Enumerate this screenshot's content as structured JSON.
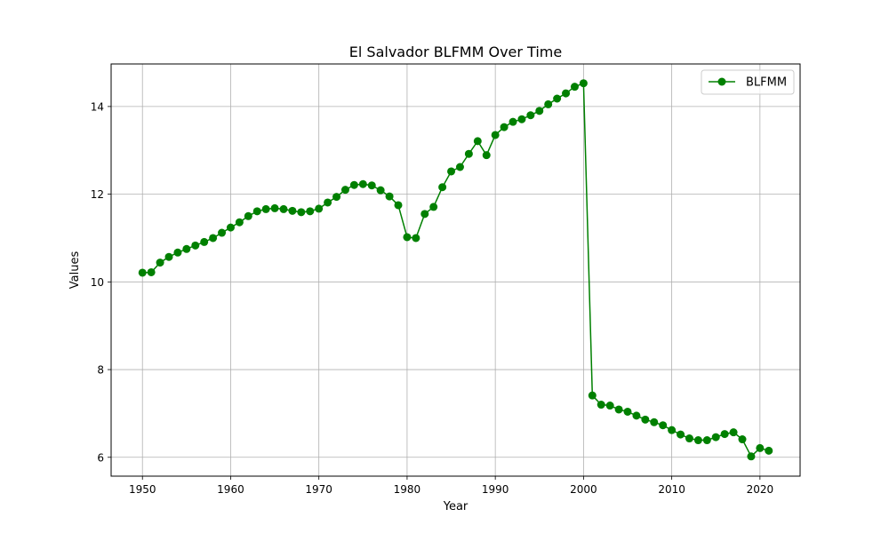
{
  "chart_data": {
    "type": "line",
    "title": "El Salvador BLFMM Over Time",
    "xlabel": "Year",
    "ylabel": "Values",
    "xlim": [
      1946.45,
      2024.55
    ],
    "ylim": [
      5.57,
      14.97
    ],
    "xticks": [
      1950,
      1960,
      1970,
      1980,
      1990,
      2000,
      2010,
      2020
    ],
    "yticks": [
      6,
      8,
      10,
      12,
      14
    ],
    "grid": true,
    "legend_position": "top-right",
    "series": [
      {
        "name": "BLFMM",
        "color": "#008000",
        "marker": "circle",
        "x": [
          1950,
          1951,
          1952,
          1953,
          1954,
          1955,
          1956,
          1957,
          1958,
          1959,
          1960,
          1961,
          1962,
          1963,
          1964,
          1965,
          1966,
          1967,
          1968,
          1969,
          1970,
          1971,
          1972,
          1973,
          1974,
          1975,
          1976,
          1977,
          1978,
          1979,
          1980,
          1981,
          1982,
          1983,
          1984,
          1985,
          1986,
          1987,
          1988,
          1989,
          1990,
          1991,
          1992,
          1993,
          1994,
          1995,
          1996,
          1997,
          1998,
          1999,
          2000,
          2001,
          2002,
          2003,
          2004,
          2005,
          2006,
          2007,
          2008,
          2009,
          2010,
          2011,
          2012,
          2013,
          2014,
          2015,
          2016,
          2017,
          2018,
          2019,
          2020,
          2021
        ],
        "values": [
          10.21,
          10.22,
          10.44,
          10.57,
          10.67,
          10.75,
          10.83,
          10.91,
          11.0,
          11.12,
          11.24,
          11.36,
          11.5,
          11.61,
          11.66,
          11.68,
          11.66,
          11.62,
          11.59,
          11.61,
          11.67,
          11.81,
          11.94,
          12.1,
          12.21,
          12.23,
          12.2,
          12.09,
          11.95,
          11.75,
          11.02,
          11.0,
          11.55,
          11.71,
          12.16,
          12.52,
          12.62,
          12.92,
          13.21,
          12.89,
          13.35,
          13.53,
          13.65,
          13.71,
          13.8,
          13.9,
          14.05,
          14.18,
          14.3,
          14.45,
          14.53,
          7.41,
          7.2,
          7.18,
          7.09,
          7.04,
          6.95,
          6.86,
          6.8,
          6.73,
          6.62,
          6.52,
          6.43,
          6.39,
          6.39,
          6.46,
          6.53,
          6.57,
          6.41,
          6.02,
          6.21,
          6.15
        ]
      }
    ]
  }
}
